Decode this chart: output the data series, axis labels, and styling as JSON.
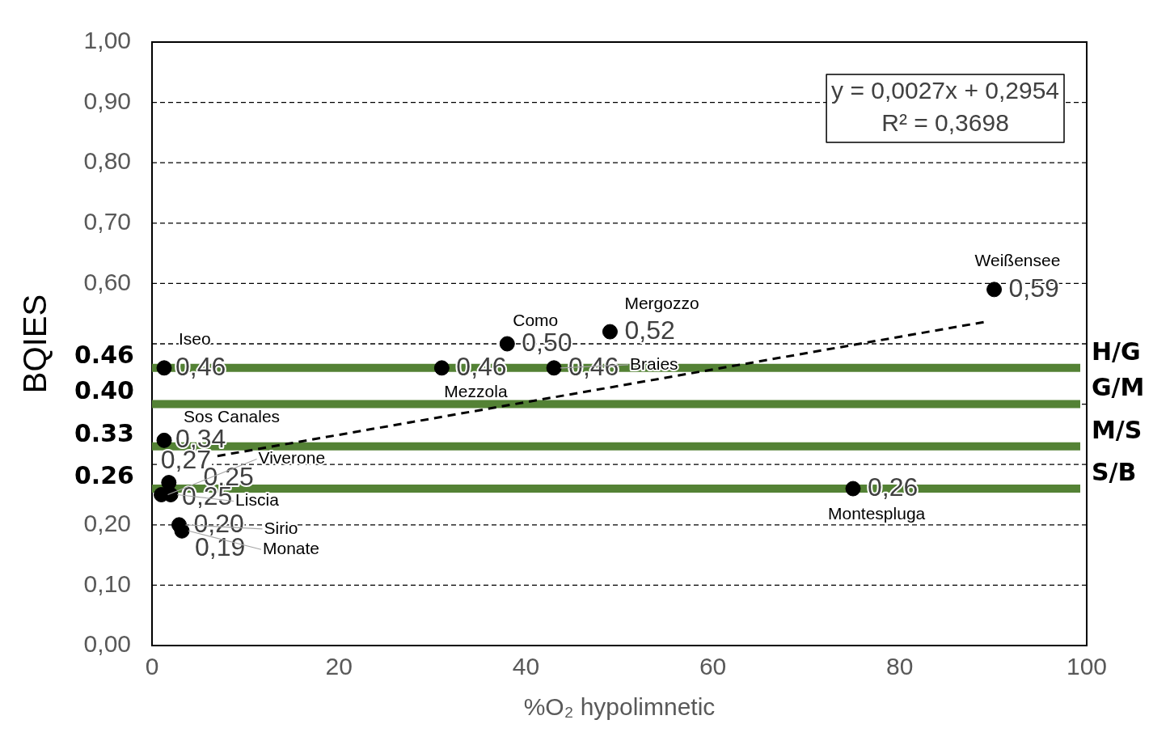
{
  "chart_data": {
    "type": "scatter",
    "xlabel": "%O₂ hypolimnetic",
    "ylabel": "BQIES",
    "x": [
      1.3,
      1.3,
      1.8,
      1.0,
      2.0,
      2.9,
      3.2,
      31,
      38,
      43,
      49,
      75,
      90.1
    ],
    "series": [
      {
        "type": "scatter",
        "color": "#000000",
        "values": [
          0.46,
          0.34,
          0.27,
          0.25,
          0.25,
          0.2,
          0.19,
          0.46,
          0.5,
          0.46,
          0.52,
          0.26,
          0.59
        ],
        "value_labels": [
          "0,46",
          "0,34",
          "0,27",
          "0,25",
          "0,25",
          "0,20",
          "0,19",
          "0,46",
          "0,50",
          "0,46",
          "0,52",
          "0,26",
          "0,59"
        ]
      },
      {
        "type": "line",
        "color": "#000000",
        "line_style": "dashed",
        "marker": "none",
        "x": [
          7,
          89
        ],
        "values": [
          0.314,
          0.536
        ]
      }
    ],
    "xlim": [
      0,
      100
    ],
    "xticks": [
      0,
      20,
      40,
      60,
      80,
      100
    ],
    "ylim": [
      0,
      1
    ],
    "yticks": [
      {
        "value": 0,
        "label": "0,00"
      },
      {
        "value": 0.1,
        "label": "0,10"
      },
      {
        "value": 0.2,
        "label": "0,20"
      },
      {
        "value": 0.3,
        "label": null
      },
      {
        "value": 0.4,
        "label": null
      },
      {
        "value": 0.5,
        "label": null
      },
      {
        "value": 0.6,
        "label": "0,60"
      },
      {
        "value": 0.7,
        "label": "0,70"
      },
      {
        "value": 0.8,
        "label": "0,80"
      },
      {
        "value": 0.9,
        "label": "0,90"
      },
      {
        "value": 1,
        "label": "1,00"
      }
    ],
    "grid": "y",
    "legend": false,
    "marker": "circle",
    "ref_lines": [
      {
        "axis": "y",
        "value": 0.46,
        "label": "H/G",
        "color": "#548235"
      },
      {
        "axis": "y",
        "value": 0.4,
        "label": "G/M",
        "color": "#548235"
      },
      {
        "axis": "y",
        "value": 0.33,
        "label": "M/S",
        "color": "#548235"
      },
      {
        "axis": "y",
        "value": 0.26,
        "label": "S/B",
        "color": "#548235"
      }
    ],
    "annotations": [
      "y = 0,0027x + 0,2954",
      "R² = 0,3698",
      "0.46",
      "0.40",
      "0.33",
      "0.26",
      {
        "text": "Iseo",
        "x": 1.3,
        "y": 0.46
      },
      {
        "text": "Sos Canales",
        "x": 1.3,
        "y": 0.34
      },
      {
        "text": "Viverone",
        "x": 1.0,
        "y": 0.25
      },
      {
        "text": "Liscia",
        "x": 2.0,
        "y": 0.25
      },
      {
        "text": "Sirio",
        "x": 2.9,
        "y": 0.2
      },
      {
        "text": "Monate",
        "x": 3.2,
        "y": 0.19
      },
      {
        "text": "Mezzola",
        "x": 31,
        "y": 0.46
      },
      {
        "text": "Como",
        "x": 38,
        "y": 0.5
      },
      {
        "text": "Braies",
        "x": 43,
        "y": 0.46
      },
      {
        "text": "Mergozzo",
        "x": 49,
        "y": 0.52
      },
      {
        "text": "Montespluga",
        "x": 75,
        "y": 0.26
      },
      {
        "text": "Weißensee",
        "x": 90.1,
        "y": 0.59
      }
    ]
  }
}
